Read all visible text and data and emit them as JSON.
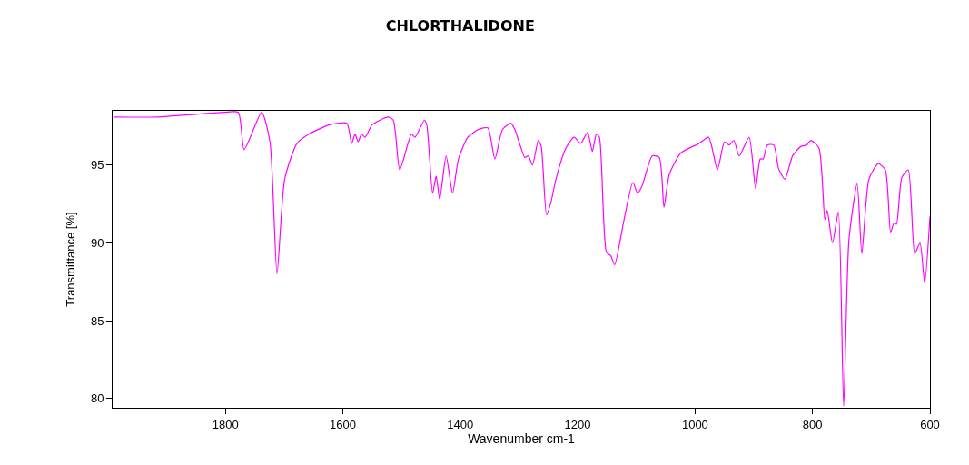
{
  "chart_data": {
    "type": "line",
    "title": "CHLORTHALIDONE",
    "xlabel": "Wavenumber cm-1",
    "ylabel": "Transmittance [%]",
    "xlim": [
      1992,
      600
    ],
    "ylim": [
      79.4,
      98.5
    ],
    "xticks": [
      1800,
      1600,
      1400,
      1200,
      1000,
      800,
      600
    ],
    "yticks": [
      80,
      85,
      90,
      95
    ],
    "marker": "none",
    "line_style": "solid",
    "series": [
      {
        "color": "#ff00ff",
        "x": [
          1990,
          1916,
          1843,
          1802,
          1778,
          1768,
          1738,
          1724,
          1712,
          1699,
          1678,
          1658,
          1622,
          1593,
          1585,
          1579,
          1574,
          1568,
          1562,
          1550,
          1523,
          1514,
          1503,
          1483,
          1477,
          1461,
          1457,
          1447,
          1441,
          1435,
          1424,
          1413,
          1403,
          1387,
          1369,
          1353,
          1341,
          1328,
          1314,
          1307,
          1299,
          1290,
          1284,
          1277,
          1267,
          1262,
          1253,
          1245,
          1237,
          1220,
          1206,
          1195,
          1183,
          1175,
          1168,
          1163,
          1151,
          1144,
          1137,
          1121,
          1106,
          1098,
          1090,
          1073,
          1061,
          1053,
          1044,
          1024,
          993,
          977,
          962,
          950,
          942,
          934,
          925,
          908,
          897,
          889,
          884,
          877,
          866,
          858,
          847,
          834,
          820,
          810,
          803,
          789,
          779,
          775,
          766,
          756,
          747,
          738,
          724,
          716,
          704,
          688,
          676,
          667,
          661,
          657,
          648,
          637,
          626,
          617,
          609,
          600
        ],
        "values": [
          98.1,
          98.1,
          98.3,
          98.4,
          98.4,
          96.0,
          98.4,
          96.5,
          88.0,
          94.1,
          96.4,
          97.0,
          97.6,
          97.7,
          96.4,
          97.0,
          96.5,
          97.0,
          96.8,
          97.6,
          98.1,
          97.9,
          94.7,
          97.0,
          96.8,
          97.9,
          97.6,
          93.2,
          94.3,
          92.8,
          95.6,
          93.2,
          95.4,
          96.8,
          97.3,
          97.4,
          95.4,
          97.3,
          97.7,
          97.3,
          96.4,
          95.5,
          95.6,
          95.0,
          96.6,
          96.2,
          91.8,
          92.7,
          94.1,
          96.1,
          96.8,
          96.4,
          97.1,
          95.9,
          97.0,
          96.8,
          89.4,
          89.2,
          88.6,
          91.5,
          93.9,
          93.2,
          93.7,
          95.6,
          95.5,
          92.3,
          94.4,
          95.8,
          96.4,
          96.8,
          94.7,
          96.5,
          96.3,
          96.6,
          95.6,
          96.8,
          93.5,
          95.4,
          95.4,
          96.3,
          96.3,
          94.8,
          94.1,
          95.6,
          96.2,
          96.3,
          96.6,
          96.1,
          91.5,
          92.1,
          90.0,
          92.0,
          79.5,
          90.2,
          93.8,
          89.3,
          94.1,
          95.1,
          94.7,
          90.7,
          91.3,
          91.2,
          94.2,
          94.7,
          89.3,
          90.0,
          87.4,
          91.7
        ]
      }
    ]
  }
}
